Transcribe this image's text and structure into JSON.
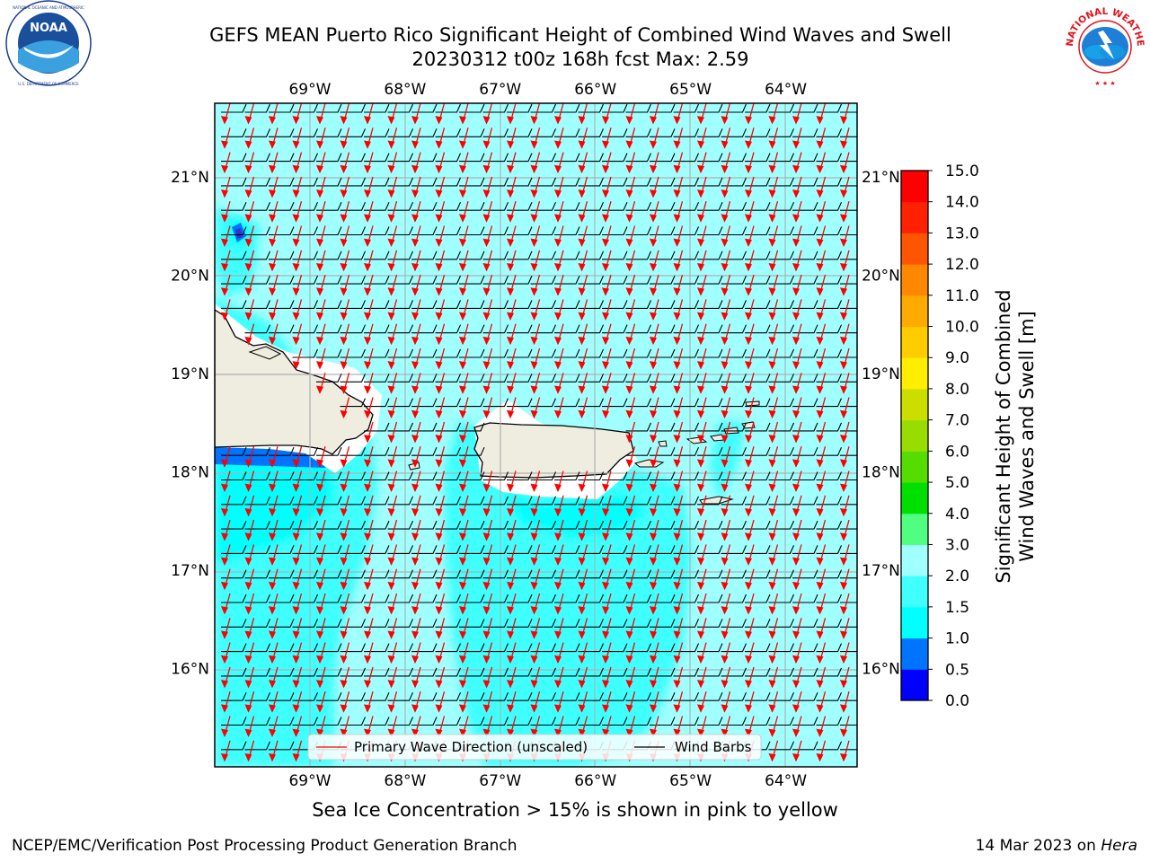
{
  "header": {
    "title_line1": "GEFS MEAN Puerto Rico Significant Height of Combined Wind Waves and Swell",
    "title_line2": "20230312 t00z 168h fcst   Max: 2.59"
  },
  "logos": {
    "left": {
      "icon": "noaa-logo",
      "text": "NOAA",
      "ring_text": "NATIONAL OCEANIC AND ATMOSPHERIC ADMINISTRATION · U.S. DEPARTMENT OF COMMERCE"
    },
    "right": {
      "icon": "nws-logo",
      "ring_text": "NATIONAL WEATHER SERVICE"
    }
  },
  "caption": "Sea Ice Concentration > 15% is shown in pink to yellow",
  "footer": {
    "left": "NCEP/EMC/Verification Post Processing Product Generation Branch",
    "right_prefix": "14 Mar 2023 on ",
    "right_host": "Hera"
  },
  "chart_data": {
    "type": "heatmap",
    "title": "GEFS MEAN Puerto Rico Significant Height of Combined Wind Waves and Swell",
    "subtitle": "20230312 t00z 168h fcst   Max: 2.59",
    "lon_range": [
      -70.0,
      -63.25
    ],
    "lat_range": [
      15.0,
      21.75
    ],
    "x_ticks": [
      "69°W",
      "68°W",
      "67°W",
      "66°W",
      "65°W",
      "64°W"
    ],
    "x_tick_values": [
      -69,
      -68,
      -67,
      -66,
      -65,
      -64
    ],
    "y_ticks": [
      "16°N",
      "17°N",
      "18°N",
      "19°N",
      "20°N",
      "21°N"
    ],
    "y_tick_values": [
      16,
      17,
      18,
      19,
      20,
      21
    ],
    "grid": true,
    "legend": {
      "placement": "bottom-center",
      "entries": [
        {
          "label": "Primary Wave Direction (unscaled)",
          "color": "#ff0000"
        },
        {
          "label": "Wind Barbs",
          "color": "#000000"
        }
      ]
    },
    "colorbar": {
      "label_line1": "Significant Height of Combined",
      "label_line2": "Wind Waves and Swell [m]",
      "ticks": [
        "0.0",
        "0.5",
        "1.0",
        "1.5",
        "2.0",
        "3.0",
        "4.0",
        "5.0",
        "6.0",
        "7.0",
        "8.0",
        "9.0",
        "10.0",
        "11.0",
        "12.0",
        "13.0",
        "14.0",
        "15.0"
      ],
      "colors": [
        "#0000ff",
        "#0073ff",
        "#00ffff",
        "#40ffff",
        "#a0ffff",
        "#50ff80",
        "#00e000",
        "#55dd00",
        "#99dd00",
        "#ccdd00",
        "#ffee00",
        "#ffcc00",
        "#ffaa00",
        "#ff8800",
        "#ff5500",
        "#ff2200",
        "#ff0000"
      ]
    },
    "field_colors": {
      "land": "#eeede0",
      "no_data": "#ffffff",
      "wave_2_3": "#a0ffff",
      "wave_1_5_2": "#40ffff",
      "wave_1_1_5": "#00ffff",
      "wave_0_5_1": "#0073ff",
      "wave_0_0_5": "#0000ff"
    },
    "wave_direction_deg": 195,
    "wind_barb_direction": "easterly",
    "max_value": 2.59
  }
}
